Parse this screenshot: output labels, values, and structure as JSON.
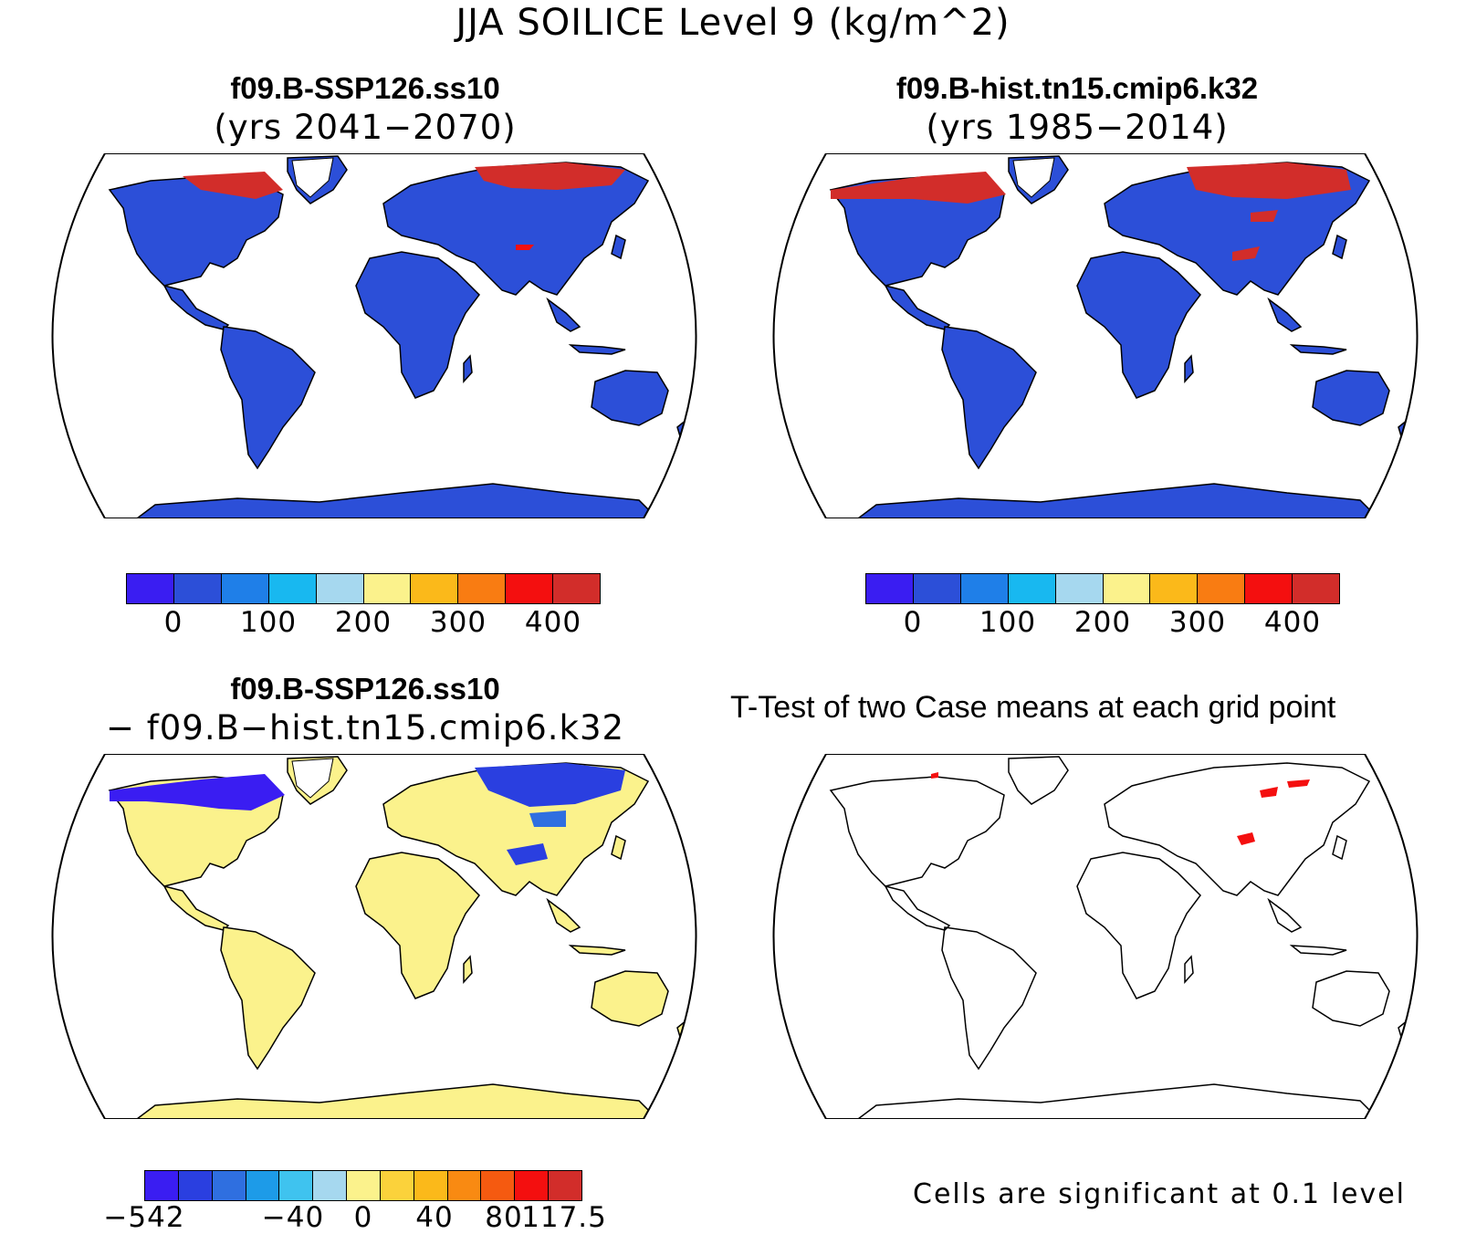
{
  "title": "JJA SOILICE Level 9 (kg/m^2)",
  "panels": {
    "top_left": {
      "case": "f09.B-SSP126.ss10",
      "years": "(yrs 2041−2070)"
    },
    "top_right": {
      "case": "f09.B-hist.tn15.cmip6.k32",
      "years": "(yrs 1985−2014)"
    },
    "bottom_left": {
      "case": "f09.B-SSP126.ss10",
      "minus": "− f09.B−hist.tn15.cmip6.k32"
    },
    "bottom_right": {
      "title": "T-Test of two Case means at each grid point",
      "note": "Cells are significant at 0.1 level"
    }
  },
  "colorbars": {
    "abs": {
      "colors": [
        "#3a1df2",
        "#2c4fd8",
        "#1f7fe8",
        "#18b8f0",
        "#a6d8ef",
        "#fbf28c",
        "#fbb91a",
        "#f97c12",
        "#f40f0f",
        "#d22d2a"
      ],
      "ticks": [
        "0",
        "100",
        "200",
        "300",
        "400"
      ]
    },
    "diff": {
      "colors": [
        "#3a1df2",
        "#2a3fe0",
        "#2f6fe0",
        "#1d9be8",
        "#3fc3ef",
        "#a6d8ef",
        "#fbf28c",
        "#fbd23b",
        "#fbb91a",
        "#f98a12",
        "#f55a10",
        "#f40f0f",
        "#d22d2a"
      ],
      "ticks": [
        "−542",
        "−40",
        "0",
        "40",
        "80",
        "117.5"
      ]
    }
  },
  "fills": {
    "land": "#2c4fd8",
    "diff_land": "#fbf28c",
    "ice": "#d22d2a",
    "sig": "#f40f0f"
  }
}
